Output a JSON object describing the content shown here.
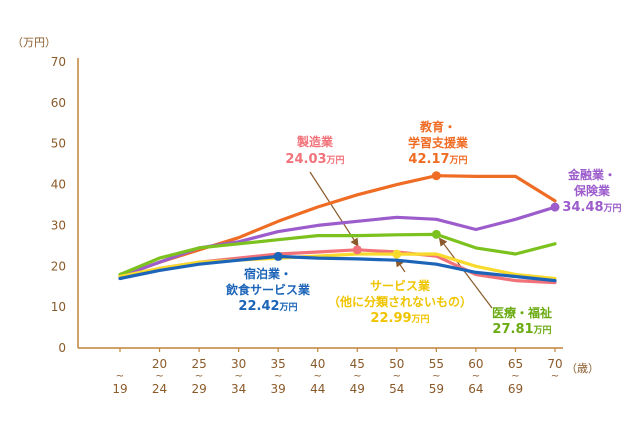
{
  "chart_data": {
    "type": "line",
    "title": "",
    "ylabel": "（万円）",
    "xlabel": "（歳）",
    "ylim": [
      0,
      70
    ],
    "yticks": [
      0,
      10,
      20,
      30,
      40,
      50,
      60,
      70
    ],
    "grid": false,
    "legend": "inline-annotations",
    "axis_color": "#c0843a",
    "categories": [
      {
        "top": "",
        "bottom": "19"
      },
      {
        "top": "20",
        "bottom": "24"
      },
      {
        "top": "25",
        "bottom": "29"
      },
      {
        "top": "30",
        "bottom": "34"
      },
      {
        "top": "35",
        "bottom": "39"
      },
      {
        "top": "40",
        "bottom": "44"
      },
      {
        "top": "45",
        "bottom": "49"
      },
      {
        "top": "50",
        "bottom": "54"
      },
      {
        "top": "55",
        "bottom": "59"
      },
      {
        "top": "60",
        "bottom": "64"
      },
      {
        "top": "65",
        "bottom": "69"
      },
      {
        "top": "70",
        "bottom": ""
      }
    ],
    "series": [
      {
        "name": "教育・学習支援業",
        "color": "#ef6c24",
        "values": [
          17.5,
          21,
          24,
          27,
          31,
          34.5,
          37.5,
          40,
          42.17,
          42,
          42,
          36
        ],
        "marker_index": 8
      },
      {
        "name": "金融業・保険業",
        "color": "#9c5ccc",
        "values": [
          17.5,
          21,
          24.5,
          26,
          28.5,
          30,
          31,
          32,
          31.5,
          29,
          31.5,
          34.48
        ],
        "marker_index": 11
      },
      {
        "name": "医療・福祉",
        "color": "#7cc21f",
        "values": [
          18,
          22,
          24.5,
          25.5,
          26.5,
          27.5,
          27.5,
          27.7,
          27.81,
          24.5,
          23,
          25.5
        ],
        "marker_index": 8
      },
      {
        "name": "製造業",
        "color": "#f2727a",
        "values": [
          17,
          19.5,
          21,
          22,
          23,
          23.5,
          24.03,
          23.5,
          22.5,
          18,
          16.5,
          16
        ],
        "marker_index": 6
      },
      {
        "name": "サービス業（他に分類されないもの）",
        "color": "#f7da2b",
        "values": [
          17.5,
          19.5,
          21,
          21.5,
          22,
          22.5,
          23,
          22.99,
          23,
          20,
          18,
          17
        ],
        "marker_index": 7
      },
      {
        "name": "宿泊業・飲食サービス業",
        "color": "#1c64b8",
        "values": [
          17,
          19,
          20.5,
          21.5,
          22.42,
          22,
          21.8,
          21.5,
          20.5,
          18.5,
          17.5,
          16.5
        ],
        "marker_index": 4
      }
    ],
    "annotations": [
      {
        "id": "kyoiku",
        "line1": "教育・",
        "line2": "学習支援業",
        "value": "42.17",
        "unit": "万円",
        "color": "#ef6c24"
      },
      {
        "id": "kinyu",
        "line1": "金融業・",
        "line2": "保険業",
        "value": "34.48",
        "unit": "万円",
        "color": "#9c5ccc"
      },
      {
        "id": "seizo",
        "line1": "製造業",
        "line2": "",
        "value": "24.03",
        "unit": "万円",
        "color": "#f2727a"
      },
      {
        "id": "service",
        "line1": "サービス業",
        "line2": "（他に分類されないもの）",
        "value": "22.99",
        "unit": "万円",
        "color": "#f0c400"
      },
      {
        "id": "shukuhaku",
        "line1": "宿泊業・",
        "line2": "飲食サービス業",
        "value": "22.42",
        "unit": "万円",
        "color": "#1c64b8"
      },
      {
        "id": "iryo",
        "line1": "医療・福祉",
        "line2": "",
        "value": "27.81",
        "unit": "万円",
        "color": "#6aab12"
      }
    ]
  }
}
